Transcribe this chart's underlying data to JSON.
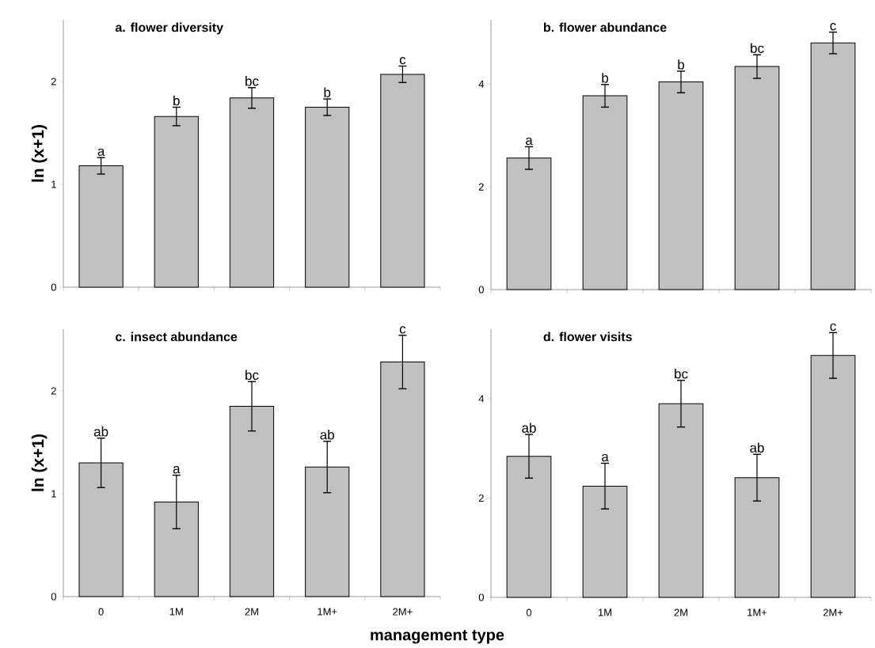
{
  "chart_data": [
    {
      "type": "bar",
      "title": "a. flower diversity",
      "ylabel": "ln (x+1)",
      "categories": [
        "0",
        "1M",
        "2M",
        "1M+",
        "2M+"
      ],
      "values": [
        1.18,
        1.66,
        1.84,
        1.75,
        2.07
      ],
      "errors": [
        0.08,
        0.09,
        0.1,
        0.08,
        0.08
      ],
      "color": "#c0c0c0",
      "ylim": [
        0,
        2.6
      ],
      "yticks": [
        0,
        1,
        2
      ],
      "tick_labels": "y",
      "annotations": [
        {
          "text": "a",
          "x": "0",
          "y": 1.26
        },
        {
          "text": "b",
          "x": "1M",
          "y": 1.75
        },
        {
          "text": "bc",
          "x": "2M",
          "y": 1.94
        },
        {
          "text": "b",
          "x": "1M+",
          "y": 1.83
        },
        {
          "text": "c",
          "x": "2M+",
          "y": 2.15
        }
      ]
    },
    {
      "type": "bar",
      "title": "b. flower abundance",
      "categories": [
        "0",
        "1M",
        "2M",
        "1M+",
        "2M+"
      ],
      "values": [
        2.56,
        3.77,
        4.04,
        4.34,
        4.8
      ],
      "errors": [
        0.22,
        0.22,
        0.21,
        0.23,
        0.21
      ],
      "color": "#c0c0c0",
      "ylim": [
        0,
        5.25
      ],
      "yticks": [
        0,
        2,
        4
      ],
      "tick_labels": "y",
      "annotations": [
        {
          "text": "a",
          "x": "0",
          "y": 2.78
        },
        {
          "text": "b",
          "x": "1M",
          "y": 3.99
        },
        {
          "text": "b",
          "x": "2M",
          "y": 4.25
        },
        {
          "text": "bc",
          "x": "1M+",
          "y": 4.57
        },
        {
          "text": "c",
          "x": "2M+",
          "y": 5.01
        }
      ]
    },
    {
      "type": "bar",
      "title": "c. insect abundance",
      "ylabel": "ln (x+1)",
      "xlabel": "management type",
      "categories": [
        "0",
        "1M",
        "2M",
        "1M+",
        "2M+"
      ],
      "values": [
        1.3,
        0.92,
        1.85,
        1.26,
        2.28
      ],
      "errors": [
        0.24,
        0.26,
        0.24,
        0.25,
        0.26
      ],
      "color": "#c0c0c0",
      "ylim": [
        0,
        2.6
      ],
      "yticks": [
        0,
        1,
        2
      ],
      "annotations": [
        {
          "text": "ab",
          "x": "0",
          "y": 1.54
        },
        {
          "text": "a",
          "x": "1M",
          "y": 1.18
        },
        {
          "text": "bc",
          "x": "2M",
          "y": 2.09
        },
        {
          "text": "ab",
          "x": "1M+",
          "y": 1.51
        },
        {
          "text": "c",
          "x": "2M+",
          "y": 2.54
        }
      ]
    },
    {
      "type": "bar",
      "title": "d. flower visits",
      "categories": [
        "0",
        "1M",
        "2M",
        "1M+",
        "2M+"
      ],
      "values": [
        2.84,
        2.24,
        3.9,
        2.41,
        4.87
      ],
      "errors": [
        0.44,
        0.46,
        0.47,
        0.47,
        0.46
      ],
      "color": "#c0c0c0",
      "ylim": [
        0,
        5.4
      ],
      "yticks": [
        0,
        2,
        4
      ],
      "annotations": [
        {
          "text": "ab",
          "x": "0",
          "y": 3.28
        },
        {
          "text": "a",
          "x": "1M",
          "y": 2.7
        },
        {
          "text": "bc",
          "x": "2M",
          "y": 4.37
        },
        {
          "text": "ab",
          "x": "1M+",
          "y": 2.88
        },
        {
          "text": "c",
          "x": "2M+",
          "y": 5.33
        }
      ]
    }
  ]
}
